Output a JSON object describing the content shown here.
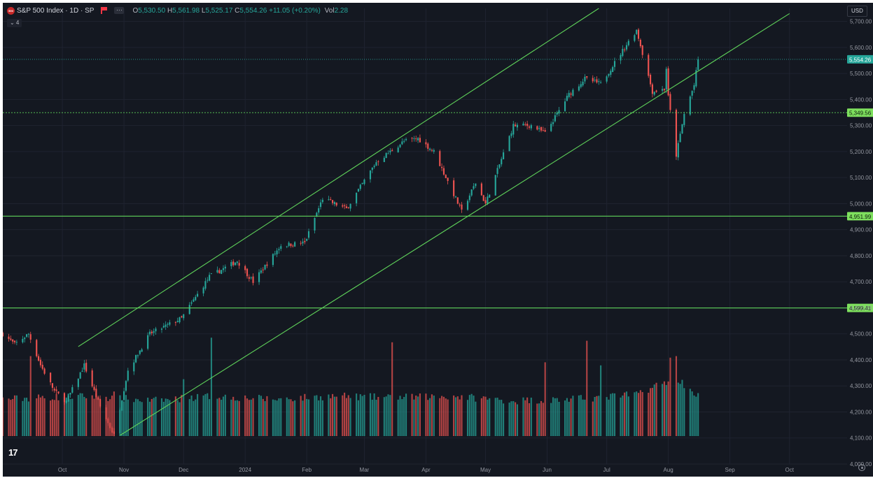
{
  "header": {
    "symbol_logo_text": "500",
    "title": "S&P 500 Index · 1D · SP",
    "more_label": "···",
    "ohlc": {
      "o_label": "O",
      "o_value": "5,530.50",
      "h_label": "H",
      "h_value": "5,561.98",
      "l_label": "L",
      "l_value": "5,525.17",
      "c_label": "C",
      "c_value": "5,554.26",
      "change": "+11.05 (+0.20%)",
      "vol_label": "Vol",
      "vol_value": "2.28"
    },
    "indicators_toggle": "⌄ 4",
    "currency": "USD"
  },
  "footer": {
    "brand": "17"
  },
  "colors": {
    "background": "#141821",
    "up": "#26a69a",
    "down": "#ef5350",
    "line": "#5fd35a",
    "axis_text": "#9598a1",
    "grid": "#1f2330"
  },
  "chart_data": {
    "type": "candlestick",
    "symbol": "S&P 500 Index",
    "interval": "1D",
    "ylim": [
      4000,
      5750
    ],
    "y_ticks": [
      "5,700.00",
      "5,600.00",
      "5,500.00",
      "5,400.00",
      "5,300.00",
      "5,200.00",
      "5,100.00",
      "5,000.00",
      "4,900.00",
      "4,800.00",
      "4,700.00",
      "4,600.00",
      "4,500.00",
      "4,400.00",
      "4,300.00",
      "4,200.00",
      "4,100.00",
      "4,000.00"
    ],
    "x_range": [
      "2023-09-01",
      "2024-10-30"
    ],
    "x_ticks": [
      {
        "date": "2023-10-01",
        "label": "Oct"
      },
      {
        "date": "2023-11-01",
        "label": "Nov"
      },
      {
        "date": "2023-12-01",
        "label": "Dec"
      },
      {
        "date": "2024-01-01",
        "label": "2024"
      },
      {
        "date": "2024-02-01",
        "label": "Feb"
      },
      {
        "date": "2024-03-01",
        "label": "Mar"
      },
      {
        "date": "2024-04-01",
        "label": "Apr"
      },
      {
        "date": "2024-05-01",
        "label": "May"
      },
      {
        "date": "2024-06-01",
        "label": "Jun"
      },
      {
        "date": "2024-07-01",
        "label": "Jul"
      },
      {
        "date": "2024-08-01",
        "label": "Aug"
      },
      {
        "date": "2024-09-01",
        "label": "Sep"
      },
      {
        "date": "2024-10-01",
        "label": "Oct"
      }
    ],
    "last_date": "2024-08-16",
    "anchors": [
      [
        "2023-09-01",
        4500
      ],
      [
        "2023-09-07",
        4460
      ],
      [
        "2023-09-14",
        4500
      ],
      [
        "2023-09-20",
        4380
      ],
      [
        "2023-09-27",
        4280
      ],
      [
        "2023-10-03",
        4240
      ],
      [
        "2023-10-12",
        4380
      ],
      [
        "2023-10-20",
        4220
      ],
      [
        "2023-10-27",
        4110
      ],
      [
        "2023-11-03",
        4360
      ],
      [
        "2023-11-14",
        4500
      ],
      [
        "2023-11-30",
        4560
      ],
      [
        "2023-12-14",
        4720
      ],
      [
        "2023-12-28",
        4780
      ],
      [
        "2024-01-05",
        4700
      ],
      [
        "2024-01-19",
        4840
      ],
      [
        "2024-01-31",
        4850
      ],
      [
        "2024-02-09",
        5020
      ],
      [
        "2024-02-21",
        4980
      ],
      [
        "2024-03-07",
        5160
      ],
      [
        "2024-03-21",
        5240
      ],
      [
        "2024-03-28",
        5250
      ],
      [
        "2024-04-05",
        5200
      ],
      [
        "2024-04-19",
        4970
      ],
      [
        "2024-04-26",
        5080
      ],
      [
        "2024-05-01",
        5000
      ],
      [
        "2024-05-15",
        5300
      ],
      [
        "2024-05-24",
        5300
      ],
      [
        "2024-05-31",
        5270
      ],
      [
        "2024-06-12",
        5420
      ],
      [
        "2024-06-20",
        5480
      ],
      [
        "2024-06-28",
        5460
      ],
      [
        "2024-07-10",
        5600
      ],
      [
        "2024-07-16",
        5667
      ],
      [
        "2024-07-24",
        5430
      ],
      [
        "2024-07-30",
        5440
      ],
      [
        "2024-07-31",
        5520
      ],
      [
        "2024-08-01",
        5410
      ],
      [
        "2024-08-05",
        5186
      ],
      [
        "2024-08-09",
        5344
      ],
      [
        "2024-08-14",
        5455
      ],
      [
        "2024-08-16",
        5554
      ]
    ],
    "volume_ylim": [
      0,
      10
    ],
    "volume_anchors": [
      [
        "2023-09-01",
        2.4
      ],
      [
        "2023-09-19",
        2.5
      ],
      [
        "2023-10-15",
        2.6
      ],
      [
        "2023-11-15",
        2.3
      ],
      [
        "2023-12-15",
        2.6
      ],
      [
        "2024-01-15",
        2.4
      ],
      [
        "2024-02-15",
        2.6
      ],
      [
        "2024-03-15",
        2.5
      ],
      [
        "2024-04-15",
        2.6
      ],
      [
        "2024-05-15",
        2.3
      ],
      [
        "2024-06-15",
        2.4
      ],
      [
        "2024-07-15",
        2.7
      ],
      [
        "2024-08-05",
        3.8
      ],
      [
        "2024-08-16",
        2.6
      ]
    ],
    "volume_spikes": [
      [
        "2023-09-15",
        5.2
      ],
      [
        "2023-12-15",
        6.4
      ],
      [
        "2023-12-01",
        3.7
      ],
      [
        "2024-03-15",
        6.1
      ],
      [
        "2024-05-31",
        4.8
      ],
      [
        "2024-06-21",
        6.2
      ],
      [
        "2024-06-28",
        4.6
      ],
      [
        "2024-08-05",
        5.2
      ],
      [
        "2024-08-02",
        5.1
      ],
      [
        "2023-10-27",
        2.9
      ]
    ],
    "horizontal_levels": [
      {
        "value": 5554.26,
        "label": "5,554.26",
        "style": "last-price"
      },
      {
        "value": 5349.56,
        "label": "5,349.56",
        "style": "dotted"
      },
      {
        "value": 4951.99,
        "label": "4,951.99",
        "style": "solid"
      },
      {
        "value": 4599.41,
        "label": "4,599.41",
        "style": "solid"
      }
    ],
    "trend_lines": [
      {
        "name": "channel-upper",
        "start": [
          "2023-10-09",
          4451
        ],
        "end": [
          "2024-06-27",
          5750
        ]
      },
      {
        "name": "channel-lower",
        "start": [
          "2023-10-30",
          4110
        ],
        "end": [
          "2024-10-01",
          5730
        ]
      }
    ]
  }
}
